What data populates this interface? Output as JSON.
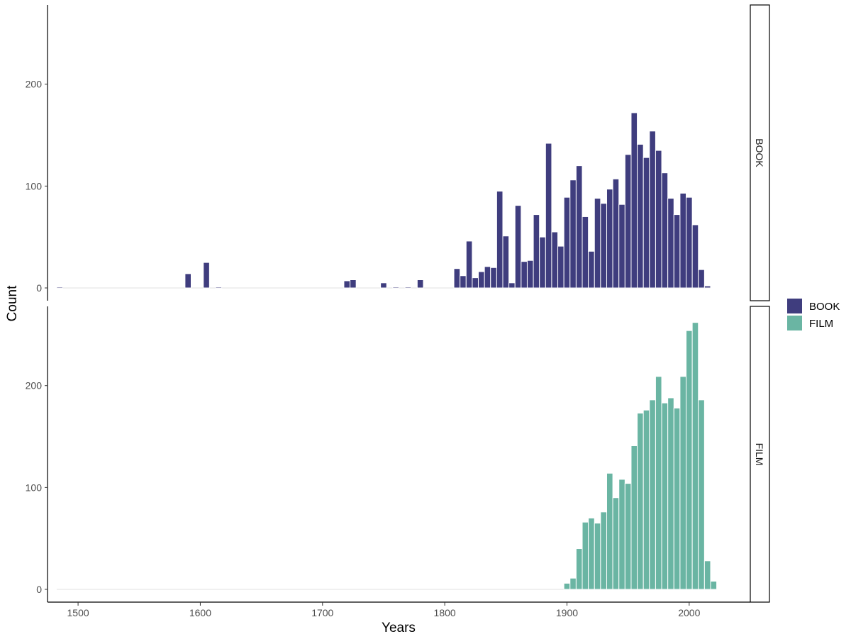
{
  "chart_data": {
    "type": "bar",
    "subtype": "faceted-histogram",
    "xlabel": "Years",
    "ylabel": "Count",
    "xlim": [
      1475,
      2050
    ],
    "x_ticks": [
      1500,
      1600,
      1700,
      1800,
      1900,
      2000
    ],
    "ylim": [
      0,
      275
    ],
    "y_ticks": [
      0,
      100,
      200
    ],
    "bin_width": 5,
    "grid": false,
    "legend_position": "right",
    "facets": [
      {
        "name": "BOOK",
        "color": "#3f3d7e",
        "bins": [
          {
            "x": 1485,
            "y": 1
          },
          {
            "x": 1490,
            "y": 0
          },
          {
            "x": 1495,
            "y": 0
          },
          {
            "x": 1500,
            "y": 0
          },
          {
            "x": 1505,
            "y": 0
          },
          {
            "x": 1510,
            "y": 0
          },
          {
            "x": 1515,
            "y": 0
          },
          {
            "x": 1520,
            "y": 0
          },
          {
            "x": 1525,
            "y": 0
          },
          {
            "x": 1530,
            "y": 0
          },
          {
            "x": 1535,
            "y": 0
          },
          {
            "x": 1540,
            "y": 0
          },
          {
            "x": 1545,
            "y": 0
          },
          {
            "x": 1550,
            "y": 0
          },
          {
            "x": 1555,
            "y": 0
          },
          {
            "x": 1560,
            "y": 0
          },
          {
            "x": 1565,
            "y": 0
          },
          {
            "x": 1570,
            "y": 0
          },
          {
            "x": 1575,
            "y": 0
          },
          {
            "x": 1580,
            "y": 0
          },
          {
            "x": 1585,
            "y": 0
          },
          {
            "x": 1590,
            "y": 14
          },
          {
            "x": 1595,
            "y": 0
          },
          {
            "x": 1600,
            "y": 0
          },
          {
            "x": 1605,
            "y": 25
          },
          {
            "x": 1610,
            "y": 0
          },
          {
            "x": 1615,
            "y": 1
          },
          {
            "x": 1620,
            "y": 0
          },
          {
            "x": 1625,
            "y": 0
          },
          {
            "x": 1630,
            "y": 0
          },
          {
            "x": 1635,
            "y": 0
          },
          {
            "x": 1640,
            "y": 0
          },
          {
            "x": 1645,
            "y": 0
          },
          {
            "x": 1650,
            "y": 0
          },
          {
            "x": 1655,
            "y": 0
          },
          {
            "x": 1660,
            "y": 0
          },
          {
            "x": 1665,
            "y": 0
          },
          {
            "x": 1670,
            "y": 0
          },
          {
            "x": 1675,
            "y": 0
          },
          {
            "x": 1680,
            "y": 0
          },
          {
            "x": 1685,
            "y": 0
          },
          {
            "x": 1690,
            "y": 0
          },
          {
            "x": 1695,
            "y": 0
          },
          {
            "x": 1700,
            "y": 0
          },
          {
            "x": 1705,
            "y": 0
          },
          {
            "x": 1710,
            "y": 0
          },
          {
            "x": 1715,
            "y": 0
          },
          {
            "x": 1720,
            "y": 7
          },
          {
            "x": 1725,
            "y": 8
          },
          {
            "x": 1730,
            "y": 0
          },
          {
            "x": 1735,
            "y": 0
          },
          {
            "x": 1740,
            "y": 0
          },
          {
            "x": 1745,
            "y": 0
          },
          {
            "x": 1750,
            "y": 5
          },
          {
            "x": 1755,
            "y": 0
          },
          {
            "x": 1760,
            "y": 1
          },
          {
            "x": 1765,
            "y": 0
          },
          {
            "x": 1770,
            "y": 1
          },
          {
            "x": 1775,
            "y": 0
          },
          {
            "x": 1780,
            "y": 8
          },
          {
            "x": 1785,
            "y": 0
          },
          {
            "x": 1790,
            "y": 0
          },
          {
            "x": 1795,
            "y": 0
          },
          {
            "x": 1800,
            "y": 0
          },
          {
            "x": 1805,
            "y": 0
          },
          {
            "x": 1810,
            "y": 19
          },
          {
            "x": 1815,
            "y": 12
          },
          {
            "x": 1820,
            "y": 46
          },
          {
            "x": 1825,
            "y": 10
          },
          {
            "x": 1830,
            "y": 16
          },
          {
            "x": 1835,
            "y": 21
          },
          {
            "x": 1840,
            "y": 20
          },
          {
            "x": 1845,
            "y": 95
          },
          {
            "x": 1850,
            "y": 51
          },
          {
            "x": 1855,
            "y": 5
          },
          {
            "x": 1860,
            "y": 81
          },
          {
            "x": 1865,
            "y": 26
          },
          {
            "x": 1870,
            "y": 27
          },
          {
            "x": 1875,
            "y": 72
          },
          {
            "x": 1880,
            "y": 50
          },
          {
            "x": 1885,
            "y": 142
          },
          {
            "x": 1890,
            "y": 55
          },
          {
            "x": 1895,
            "y": 41
          },
          {
            "x": 1900,
            "y": 89
          },
          {
            "x": 1905,
            "y": 106
          },
          {
            "x": 1910,
            "y": 120
          },
          {
            "x": 1915,
            "y": 70
          },
          {
            "x": 1920,
            "y": 36
          },
          {
            "x": 1925,
            "y": 88
          },
          {
            "x": 1930,
            "y": 83
          },
          {
            "x": 1935,
            "y": 97
          },
          {
            "x": 1940,
            "y": 107
          },
          {
            "x": 1945,
            "y": 82
          },
          {
            "x": 1950,
            "y": 131
          },
          {
            "x": 1955,
            "y": 172
          },
          {
            "x": 1960,
            "y": 141
          },
          {
            "x": 1965,
            "y": 128
          },
          {
            "x": 1970,
            "y": 154
          },
          {
            "x": 1975,
            "y": 135
          },
          {
            "x": 1980,
            "y": 113
          },
          {
            "x": 1985,
            "y": 88
          },
          {
            "x": 1990,
            "y": 72
          },
          {
            "x": 1995,
            "y": 93
          },
          {
            "x": 2000,
            "y": 89
          },
          {
            "x": 2005,
            "y": 62
          },
          {
            "x": 2010,
            "y": 18
          },
          {
            "x": 2015,
            "y": 2
          }
        ]
      },
      {
        "name": "FILM",
        "color": "#6ab5a3",
        "bins": [
          {
            "x": 1900,
            "y": 6
          },
          {
            "x": 1905,
            "y": 11
          },
          {
            "x": 1910,
            "y": 40
          },
          {
            "x": 1915,
            "y": 66
          },
          {
            "x": 1920,
            "y": 70
          },
          {
            "x": 1925,
            "y": 65
          },
          {
            "x": 1930,
            "y": 76
          },
          {
            "x": 1935,
            "y": 114
          },
          {
            "x": 1940,
            "y": 90
          },
          {
            "x": 1945,
            "y": 108
          },
          {
            "x": 1950,
            "y": 104
          },
          {
            "x": 1955,
            "y": 141
          },
          {
            "x": 1960,
            "y": 173
          },
          {
            "x": 1965,
            "y": 176
          },
          {
            "x": 1970,
            "y": 186
          },
          {
            "x": 1975,
            "y": 209
          },
          {
            "x": 1980,
            "y": 183
          },
          {
            "x": 1985,
            "y": 188
          },
          {
            "x": 1990,
            "y": 178
          },
          {
            "x": 1995,
            "y": 209
          },
          {
            "x": 2000,
            "y": 254
          },
          {
            "x": 2005,
            "y": 262
          },
          {
            "x": 2010,
            "y": 186
          },
          {
            "x": 2015,
            "y": 28
          },
          {
            "x": 2020,
            "y": 8
          }
        ]
      }
    ],
    "legend": [
      {
        "label": "BOOK",
        "color": "#3f3d7e"
      },
      {
        "label": "FILM",
        "color": "#6ab5a3"
      }
    ]
  }
}
